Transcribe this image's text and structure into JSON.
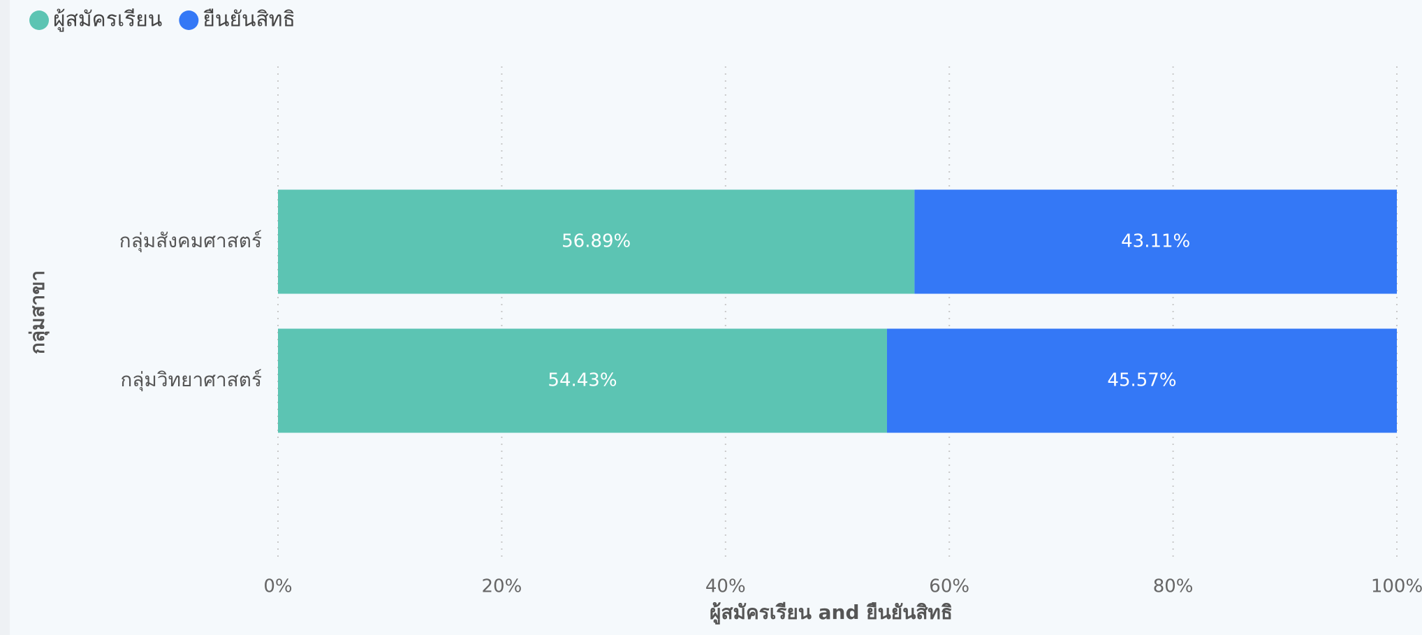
{
  "chart_data": {
    "type": "stacked_bar_horizontal",
    "categories": [
      "กลุ่มสังคมศาสตร์",
      "กลุ่มวิทยาศาสตร์"
    ],
    "series": [
      {
        "name": "ผู้สมัครเรียน",
        "color": "#5cc4b3",
        "values": [
          56.89,
          54.43
        ],
        "value_labels": [
          "56.89%",
          "54.43%"
        ]
      },
      {
        "name": "ยืนยันสิทธิ",
        "color": "#3478f6",
        "values": [
          43.11,
          45.57
        ],
        "value_labels": [
          "43.11%",
          "45.57%"
        ]
      }
    ],
    "xlabel": "ผู้สมัครเรียน and ยืนยันสิทธิ",
    "ylabel": "กลุ่มสาขา",
    "xlim": [
      0,
      100
    ],
    "xticks": [
      {
        "value": 0,
        "label": "0%"
      },
      {
        "value": 20,
        "label": "20%"
      },
      {
        "value": 40,
        "label": "40%"
      },
      {
        "value": 60,
        "label": "60%"
      },
      {
        "value": 80,
        "label": "80%"
      },
      {
        "value": 100,
        "label": "100%"
      }
    ],
    "grid": true,
    "legend": "top-left"
  }
}
